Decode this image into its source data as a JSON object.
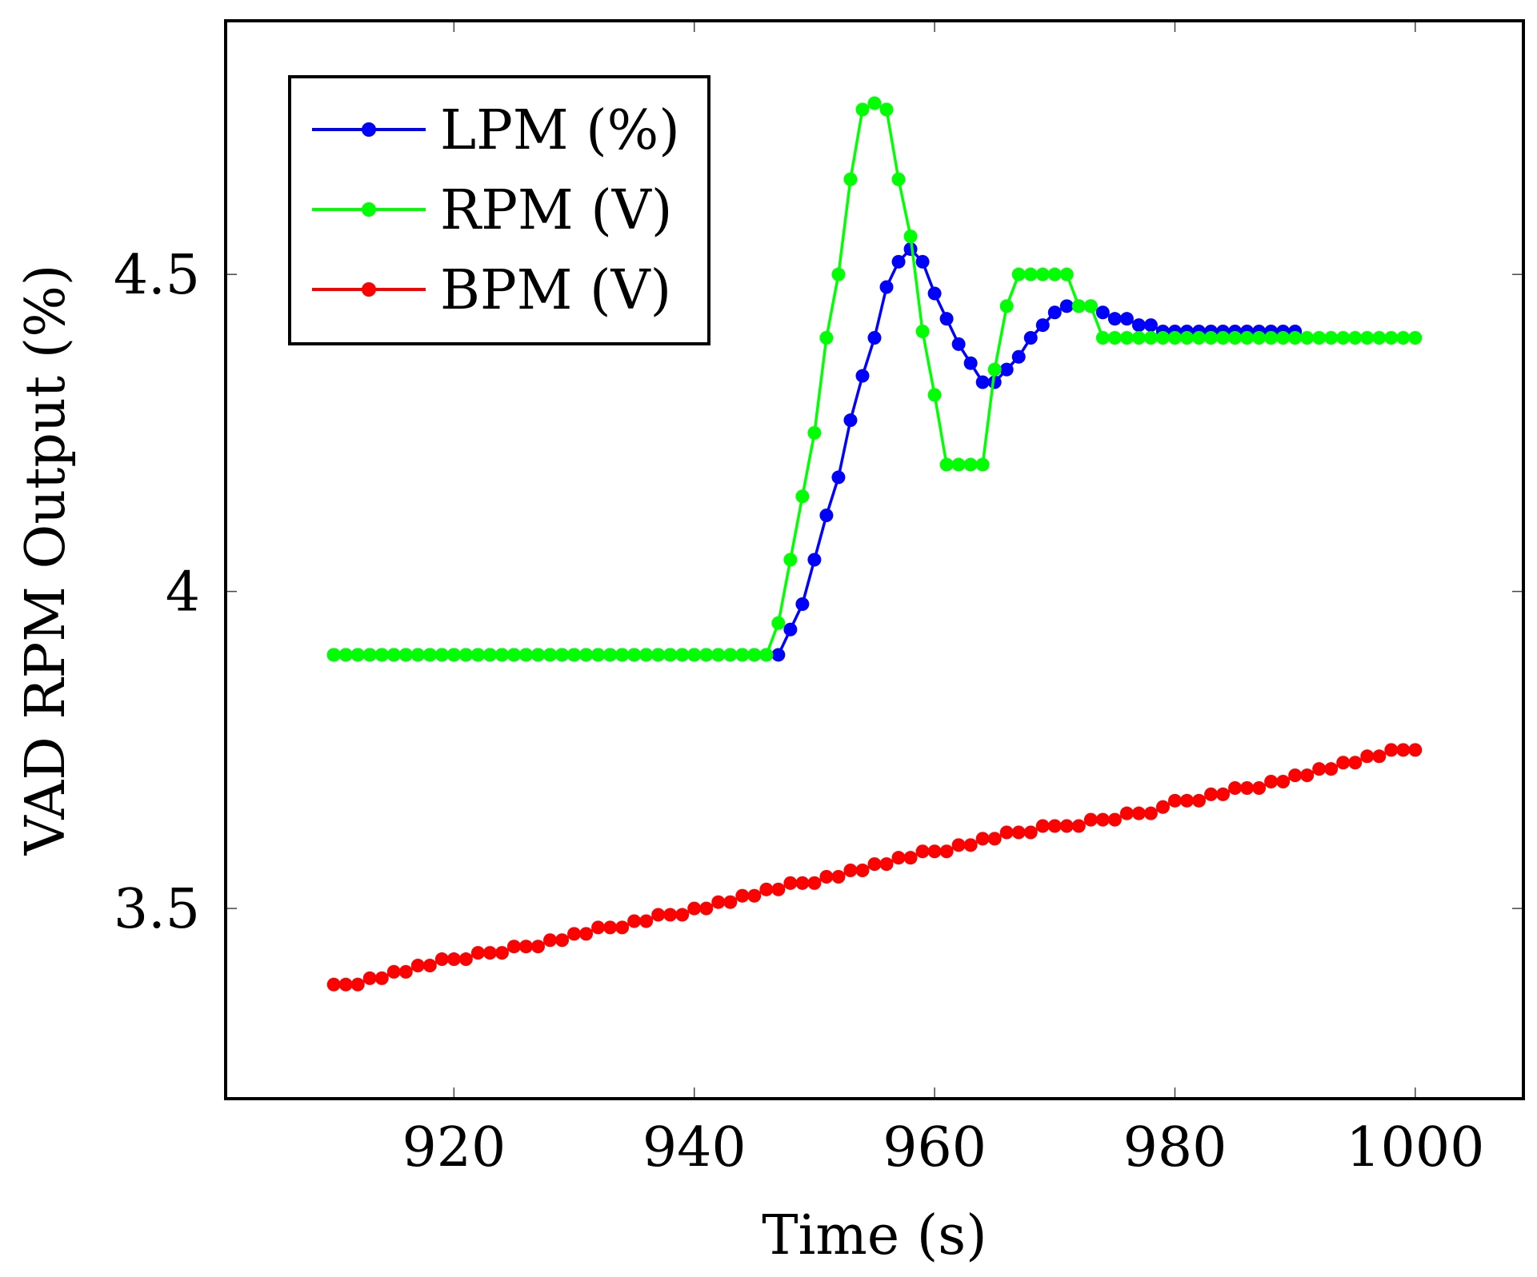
{
  "chart_data": {
    "type": "line",
    "title": "",
    "xlabel": "Time (s)",
    "ylabel": "VAD RPM Output (%)",
    "xlim": [
      901,
      1009
    ],
    "ylim": [
      3.2,
      4.9
    ],
    "xticks": [
      920,
      940,
      960,
      980,
      1000
    ],
    "xtick_labels": [
      "920",
      "940",
      "960",
      "980",
      "1000"
    ],
    "yticks": [
      3.5,
      4,
      4.5
    ],
    "ytick_labels": [
      "3.5",
      "4",
      "4.5"
    ],
    "legend_position": "top-left",
    "series": [
      {
        "name": "LPM (%)",
        "color": "#0000ff",
        "x": [
          910,
          911,
          912,
          913,
          914,
          915,
          916,
          917,
          918,
          919,
          920,
          921,
          922,
          923,
          924,
          925,
          926,
          927,
          928,
          929,
          930,
          931,
          932,
          933,
          934,
          935,
          936,
          937,
          938,
          939,
          940,
          941,
          942,
          943,
          944,
          945,
          946,
          947,
          948,
          949,
          950,
          951,
          952,
          953,
          954,
          955,
          956,
          957,
          958,
          959,
          960,
          961,
          962,
          963,
          964,
          965,
          966,
          967,
          968,
          969,
          970,
          971,
          972,
          973,
          974,
          975,
          976,
          977,
          978,
          979,
          980,
          981,
          982,
          983,
          984,
          985,
          986,
          987,
          988,
          989,
          990
        ],
        "y": [
          3.9,
          3.9,
          3.9,
          3.9,
          3.9,
          3.9,
          3.9,
          3.9,
          3.9,
          3.9,
          3.9,
          3.9,
          3.9,
          3.9,
          3.9,
          3.9,
          3.9,
          3.9,
          3.9,
          3.9,
          3.9,
          3.9,
          3.9,
          3.9,
          3.9,
          3.9,
          3.9,
          3.9,
          3.9,
          3.9,
          3.9,
          3.9,
          3.9,
          3.9,
          3.9,
          3.9,
          3.9,
          3.9,
          3.94,
          3.98,
          4.05,
          4.12,
          4.18,
          4.27,
          4.34,
          4.4,
          4.48,
          4.52,
          4.54,
          4.52,
          4.47,
          4.43,
          4.39,
          4.36,
          4.33,
          4.33,
          4.35,
          4.37,
          4.4,
          4.42,
          4.44,
          4.45,
          4.45,
          4.45,
          4.44,
          4.43,
          4.43,
          4.42,
          4.42,
          4.41,
          4.41,
          4.41,
          4.41,
          4.41,
          4.41,
          4.41,
          4.41,
          4.41,
          4.41,
          4.41,
          4.41
        ]
      },
      {
        "name": "RPM (V)",
        "color": "#00ff00",
        "x": [
          910,
          911,
          912,
          913,
          914,
          915,
          916,
          917,
          918,
          919,
          920,
          921,
          922,
          923,
          924,
          925,
          926,
          927,
          928,
          929,
          930,
          931,
          932,
          933,
          934,
          935,
          936,
          937,
          938,
          939,
          940,
          941,
          942,
          943,
          944,
          945,
          946,
          947,
          948,
          949,
          950,
          951,
          952,
          953,
          954,
          955,
          956,
          957,
          958,
          959,
          960,
          961,
          962,
          963,
          964,
          965,
          966,
          967,
          968,
          969,
          970,
          971,
          972,
          973,
          974,
          975,
          976,
          977,
          978,
          979,
          980,
          981,
          982,
          983,
          984,
          985,
          986,
          987,
          988,
          989,
          990,
          991,
          992,
          993,
          994,
          995,
          996,
          997,
          998,
          999,
          1000
        ],
        "y": [
          3.9,
          3.9,
          3.9,
          3.9,
          3.9,
          3.9,
          3.9,
          3.9,
          3.9,
          3.9,
          3.9,
          3.9,
          3.9,
          3.9,
          3.9,
          3.9,
          3.9,
          3.9,
          3.9,
          3.9,
          3.9,
          3.9,
          3.9,
          3.9,
          3.9,
          3.9,
          3.9,
          3.9,
          3.9,
          3.9,
          3.9,
          3.9,
          3.9,
          3.9,
          3.9,
          3.9,
          3.9,
          3.95,
          4.05,
          4.15,
          4.25,
          4.4,
          4.5,
          4.65,
          4.76,
          4.77,
          4.76,
          4.65,
          4.56,
          4.41,
          4.31,
          4.2,
          4.2,
          4.2,
          4.2,
          4.35,
          4.45,
          4.5,
          4.5,
          4.5,
          4.5,
          4.5,
          4.45,
          4.45,
          4.4,
          4.4,
          4.4,
          4.4,
          4.4,
          4.4,
          4.4,
          4.4,
          4.4,
          4.4,
          4.4,
          4.4,
          4.4,
          4.4,
          4.4,
          4.4,
          4.4,
          4.4,
          4.4,
          4.4,
          4.4,
          4.4,
          4.4,
          4.4,
          4.4,
          4.4,
          4.4
        ]
      },
      {
        "name": "BPM (V)",
        "color": "#ff0000",
        "x": [
          910,
          911,
          912,
          913,
          914,
          915,
          916,
          917,
          918,
          919,
          920,
          921,
          922,
          923,
          924,
          925,
          926,
          927,
          928,
          929,
          930,
          931,
          932,
          933,
          934,
          935,
          936,
          937,
          938,
          939,
          940,
          941,
          942,
          943,
          944,
          945,
          946,
          947,
          948,
          949,
          950,
          951,
          952,
          953,
          954,
          955,
          956,
          957,
          958,
          959,
          960,
          961,
          962,
          963,
          964,
          965,
          966,
          967,
          968,
          969,
          970,
          971,
          972,
          973,
          974,
          975,
          976,
          977,
          978,
          979,
          980,
          981,
          982,
          983,
          984,
          985,
          986,
          987,
          988,
          989,
          990,
          991,
          992,
          993,
          994,
          995,
          996,
          997,
          998,
          999,
          1000
        ],
        "y": [
          3.38,
          3.38,
          3.38,
          3.39,
          3.39,
          3.4,
          3.4,
          3.41,
          3.41,
          3.42,
          3.42,
          3.42,
          3.43,
          3.43,
          3.43,
          3.44,
          3.44,
          3.44,
          3.45,
          3.45,
          3.46,
          3.46,
          3.47,
          3.47,
          3.47,
          3.48,
          3.48,
          3.49,
          3.49,
          3.49,
          3.5,
          3.5,
          3.51,
          3.51,
          3.52,
          3.52,
          3.53,
          3.53,
          3.54,
          3.54,
          3.54,
          3.55,
          3.55,
          3.56,
          3.56,
          3.57,
          3.57,
          3.58,
          3.58,
          3.59,
          3.59,
          3.59,
          3.6,
          3.6,
          3.61,
          3.61,
          3.62,
          3.62,
          3.62,
          3.63,
          3.63,
          3.63,
          3.63,
          3.64,
          3.64,
          3.64,
          3.65,
          3.65,
          3.65,
          3.66,
          3.67,
          3.67,
          3.67,
          3.68,
          3.68,
          3.69,
          3.69,
          3.69,
          3.7,
          3.7,
          3.71,
          3.71,
          3.72,
          3.72,
          3.73,
          3.73,
          3.74,
          3.74,
          3.75,
          3.75,
          3.75
        ]
      }
    ]
  }
}
